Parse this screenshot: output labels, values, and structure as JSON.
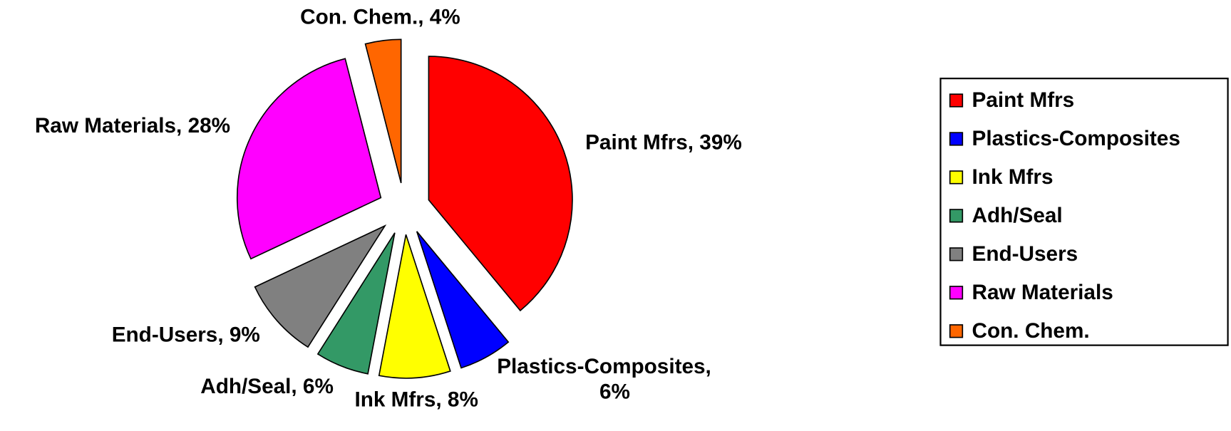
{
  "chart_data": {
    "type": "pie",
    "categories": [
      "Paint Mfrs",
      "Plastics-Composites",
      "Ink Mfrs",
      "Adh/Seal",
      "End-Users",
      "Raw Materials",
      "Con. Chem."
    ],
    "values": [
      39,
      6,
      8,
      6,
      9,
      28,
      4
    ],
    "value_labels": [
      "39%",
      "6%",
      "8%",
      "6%",
      "9%",
      "28%",
      "4%"
    ],
    "colors": [
      "#ff0000",
      "#0000ff",
      "#ffff00",
      "#339966",
      "#808080",
      "#ff00ff",
      "#ff6600"
    ],
    "legend": "right"
  }
}
